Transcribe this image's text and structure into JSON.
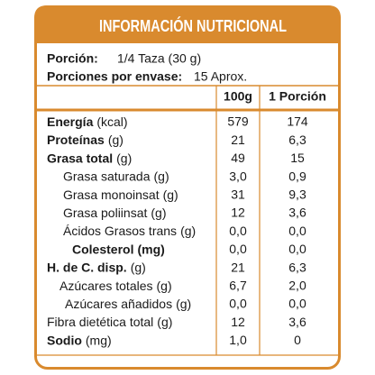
{
  "header": {
    "title": "INFORMACIÓN NUTRICIONAL"
  },
  "serving": {
    "label": "Porción:",
    "value": "1/4 Taza (30 g)"
  },
  "servings_per_container": {
    "label": "Porciones por envase:",
    "value": "15 Aprox."
  },
  "table": {
    "columns": [
      "100g",
      "1 Porción"
    ],
    "rows": [
      {
        "name": "Energía",
        "unit": "(kcal)",
        "per100g": "579",
        "perPortion": "174"
      },
      {
        "name": "Proteínas",
        "unit": "(g)",
        "per100g": "21",
        "perPortion": "6,3"
      },
      {
        "name": "Grasa total",
        "unit": "(g)",
        "per100g": "49",
        "perPortion": "15"
      },
      {
        "name": "Grasa saturada",
        "unit": "(g)",
        "per100g": "3,0",
        "perPortion": "0,9"
      },
      {
        "name": "Grasa monoinsat",
        "unit": "(g)",
        "per100g": "31",
        "perPortion": "9,3"
      },
      {
        "name": "Grasa poliinsat",
        "unit": "(g)",
        "per100g": "12",
        "perPortion": "3,6"
      },
      {
        "name": "Ácidos Grasos trans",
        "unit": "(g)",
        "per100g": "0,0",
        "perPortion": "0,0"
      },
      {
        "name": "Colesterol",
        "unit": "(mg)",
        "per100g": "0,0",
        "perPortion": "0,0"
      },
      {
        "name": "H. de C. disp.",
        "unit": "(g)",
        "per100g": "21",
        "perPortion": "6,3"
      },
      {
        "name": "Azúcares totales",
        "unit": "(g)",
        "per100g": "6,7",
        "perPortion": "2,0"
      },
      {
        "name": "Azúcares añadidos",
        "unit": "(g)",
        "per100g": "0,0",
        "perPortion": "0,0"
      },
      {
        "name": "Fibra dietética total",
        "unit": "(g)",
        "per100g": "12",
        "perPortion": "3,6"
      },
      {
        "name": "Sodio",
        "unit": "(mg)",
        "per100g": "1,0",
        "perPortion": "0"
      }
    ]
  }
}
